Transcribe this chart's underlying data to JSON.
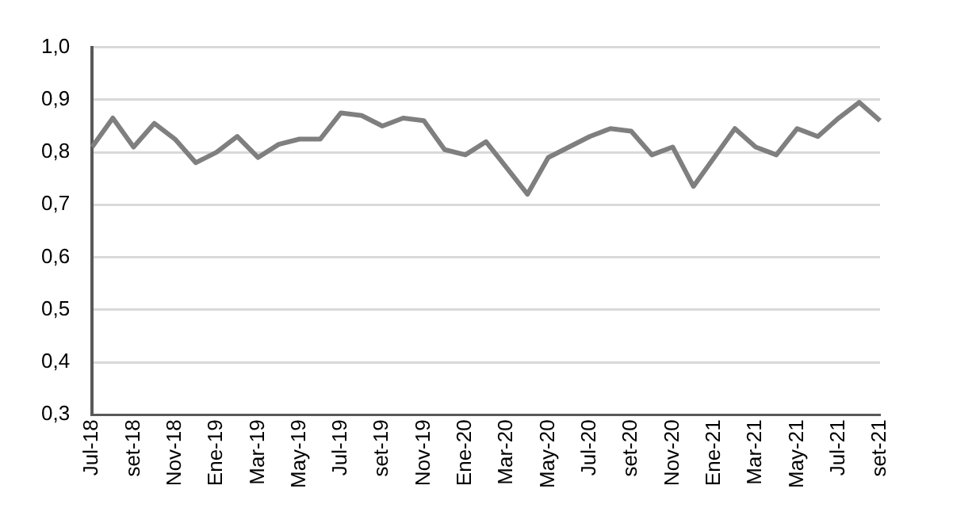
{
  "chart_data": {
    "type": "line",
    "categories": [
      "Jul-18",
      null,
      "set-18",
      null,
      "Nov-18",
      null,
      "Ene-19",
      null,
      "Mar-19",
      null,
      "May-19",
      null,
      "Jul-19",
      null,
      "set-19",
      null,
      "Nov-19",
      null,
      "Ene-20",
      null,
      "Mar-20",
      null,
      "May-20",
      null,
      "Jul-20",
      null,
      "set-20",
      null,
      "Nov-20",
      null,
      "Ene-21",
      null,
      "Mar-21",
      null,
      "May-21",
      null,
      "Jul-21",
      null,
      "set-21"
    ],
    "series": [
      {
        "color": "#7f7f7f",
        "values": [
          0.81,
          0.865,
          0.81,
          0.855,
          0.825,
          0.78,
          0.8,
          0.83,
          0.79,
          0.815,
          0.825,
          0.825,
          0.875,
          0.87,
          0.85,
          0.865,
          0.86,
          0.805,
          0.795,
          0.82,
          0.77,
          0.72,
          0.79,
          0.81,
          0.83,
          0.845,
          0.84,
          0.795,
          0.81,
          0.735,
          0.79,
          0.845,
          0.81,
          0.795,
          0.845,
          0.83,
          0.865,
          0.895,
          0.86
        ]
      }
    ],
    "ylim": [
      0.3,
      1.0
    ],
    "yticks": [
      {
        "value": 0.3,
        "label": "0,3"
      },
      {
        "value": 0.4,
        "label": "0,4"
      },
      {
        "value": 0.5,
        "label": "0,5"
      },
      {
        "value": 0.6,
        "label": "0,6"
      },
      {
        "value": 0.7,
        "label": "0,7"
      },
      {
        "value": 0.8,
        "label": "0,8"
      },
      {
        "value": 0.9,
        "label": "0,9"
      },
      {
        "value": 1.0,
        "label": "1,0"
      }
    ],
    "grid": "y",
    "legend": false,
    "marker": "none",
    "line_style": "solid"
  }
}
